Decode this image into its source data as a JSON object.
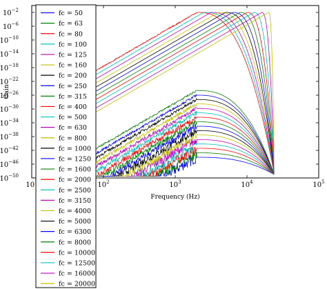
{
  "chart_data": {
    "type": "line",
    "title": "",
    "xlabel": "Frequency (Hz)",
    "ylabel": "Gain",
    "xscale": "log",
    "yscale": "log",
    "xlim": [
      10,
      100000
    ],
    "ylim": [
      1e-50,
      1
    ],
    "grid": false,
    "legend_position": "left, overlapping the plot and extending below it",
    "x_ticks": [
      {
        "value": 10,
        "base": "10",
        "exp": "1"
      },
      {
        "value": 100,
        "base": "10",
        "exp": "2"
      },
      {
        "value": 1000,
        "base": "10",
        "exp": "3"
      },
      {
        "value": 10000,
        "base": "10",
        "exp": "4"
      },
      {
        "value": 100000,
        "base": "10",
        "exp": "5"
      }
    ],
    "y_ticks": [
      {
        "value": 0.01,
        "base": "10",
        "exp": "−2"
      },
      {
        "value": 1e-06,
        "base": "10",
        "exp": "−6"
      },
      {
        "value": 1e-10,
        "base": "10",
        "exp": "−10"
      },
      {
        "value": 1e-14,
        "base": "10",
        "exp": "−14"
      },
      {
        "value": 1e-18,
        "base": "10",
        "exp": "−18"
      },
      {
        "value": 1e-22,
        "base": "10",
        "exp": "−22"
      },
      {
        "value": 1e-26,
        "base": "10",
        "exp": "−26"
      },
      {
        "value": 1e-30,
        "base": "10",
        "exp": "−30"
      },
      {
        "value": 1e-34,
        "base": "10",
        "exp": "−34"
      },
      {
        "value": 1e-38,
        "base": "10",
        "exp": "−38"
      },
      {
        "value": 1e-42,
        "base": "10",
        "exp": "−42"
      },
      {
        "value": 1e-46,
        "base": "10",
        "exp": "−46"
      },
      {
        "value": 1e-50,
        "base": "10",
        "exp": "−50"
      }
    ],
    "series": [
      {
        "name": "fc = 50",
        "fc": 50,
        "color": "#0000ff"
      },
      {
        "name": "fc = 63",
        "fc": 63,
        "color": "#008000"
      },
      {
        "name": "fc = 80",
        "fc": 80,
        "color": "#ff0000"
      },
      {
        "name": "fc = 100",
        "fc": 100,
        "color": "#00bfbf"
      },
      {
        "name": "fc = 125",
        "fc": 125,
        "color": "#bf00bf"
      },
      {
        "name": "fc = 160",
        "fc": 160,
        "color": "#bfbf00"
      },
      {
        "name": "fc = 200",
        "fc": 200,
        "color": "#000000"
      },
      {
        "name": "fc = 250",
        "fc": 250,
        "color": "#0000ff"
      },
      {
        "name": "fc = 315",
        "fc": 315,
        "color": "#008000"
      },
      {
        "name": "fc = 400",
        "fc": 400,
        "color": "#ff0000"
      },
      {
        "name": "fc = 500",
        "fc": 500,
        "color": "#00bfbf"
      },
      {
        "name": "fc = 630",
        "fc": 630,
        "color": "#bf00bf"
      },
      {
        "name": "fc = 800",
        "fc": 800,
        "color": "#bfbf00"
      },
      {
        "name": "fc = 1000",
        "fc": 1000,
        "color": "#000000"
      },
      {
        "name": "fc = 1250",
        "fc": 1250,
        "color": "#0000ff"
      },
      {
        "name": "fc = 1600",
        "fc": 1600,
        "color": "#008000"
      },
      {
        "name": "fc = 2000",
        "fc": 2000,
        "color": "#ff0000"
      },
      {
        "name": "fc = 2500",
        "fc": 2500,
        "color": "#00bfbf"
      },
      {
        "name": "fc = 3150",
        "fc": 3150,
        "color": "#bf00bf"
      },
      {
        "name": "fc = 4000",
        "fc": 4000,
        "color": "#bfbf00"
      },
      {
        "name": "fc = 5000",
        "fc": 5000,
        "color": "#000000"
      },
      {
        "name": "fc = 6300",
        "fc": 6300,
        "color": "#0000ff"
      },
      {
        "name": "fc = 8000",
        "fc": 8000,
        "color": "#008000"
      },
      {
        "name": "fc = 10000",
        "fc": 10000,
        "color": "#ff0000"
      },
      {
        "name": "fc = 12500",
        "fc": 12500,
        "color": "#00bfbf"
      },
      {
        "name": "fc = 16000",
        "fc": 16000,
        "color": "#bf00bf"
      },
      {
        "name": "fc = 20000",
        "fc": 20000,
        "color": "#bfbf00"
      }
    ],
    "curve_model": {
      "description": "filter-bank gain curves, log-log; noisy rise below ~2000 Hz, peak near each fc, steep drop to ~1e-50 near 24000 Hz",
      "shared_peak_freq": 2000,
      "notch_freq": 24000,
      "peak_gain": 0.01
    }
  }
}
